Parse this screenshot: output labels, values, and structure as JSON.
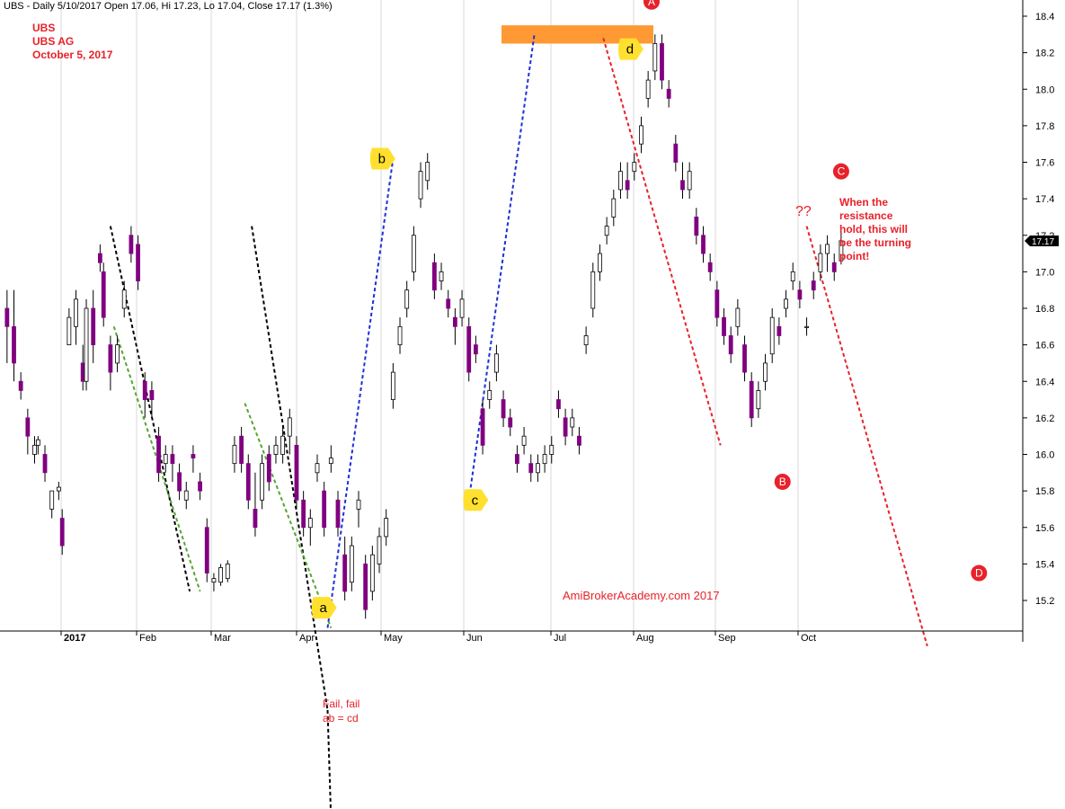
{
  "header": "UBS - Daily 5/10/2017 Open 17.06, Hi 17.23, Lo 17.04, Close 17.17 (1.3%)",
  "title_lines": [
    "UBS",
    "UBS AG",
    "October 5, 2017"
  ],
  "watermark": "AmiBrokerAcademy.com  2017",
  "fail_note": [
    "Fail, fail",
    "ab = cd"
  ],
  "resistance_note": [
    "When the",
    "resistance",
    "hold, this will",
    "be the turning",
    "point!"
  ],
  "question_marks": "??",
  "last_price_label": "17.17",
  "colors": {
    "up": "#ffffff",
    "up_outline": "#000000",
    "down": "#800080",
    "resistance_zone": "#ff9933",
    "wedge_line": "#000000",
    "trend_green": "#55a630",
    "trend_blue": "#1f2fd6",
    "trend_red": "#e8212a",
    "annotation_red": "#e8212a",
    "marker_yellow": "#ffe02e"
  },
  "chart_data": {
    "type": "candlestick",
    "symbol": "UBS",
    "interval": "Daily",
    "ylim": [
      15.0,
      18.5
    ],
    "y_ticks": [
      15.2,
      15.4,
      15.6,
      15.8,
      16.0,
      16.2,
      16.4,
      16.6,
      16.8,
      17.0,
      17.2,
      17.4,
      17.6,
      17.8,
      18.0,
      18.2,
      18.4
    ],
    "x_ticks": [
      "2017",
      "Feb",
      "Mar",
      "Apr",
      "May",
      "Jun",
      "Jul",
      "Aug",
      "Sep",
      "Oct"
    ],
    "grid": "vertical",
    "ohlc": [
      [
        1,
        16.8,
        16.9,
        16.5,
        16.7
      ],
      [
        3,
        16.7,
        16.9,
        16.4,
        16.5
      ],
      [
        5,
        16.4,
        16.45,
        16.3,
        16.35
      ],
      [
        7,
        16.2,
        16.25,
        16.0,
        16.1
      ],
      [
        9,
        16.0,
        16.1,
        15.95,
        16.05
      ],
      [
        10,
        16.05,
        16.1,
        16.0,
        16.08
      ],
      [
        12,
        16.0,
        16.05,
        15.85,
        15.9
      ],
      [
        14,
        15.7,
        15.8,
        15.65,
        15.8
      ],
      [
        16,
        15.8,
        15.85,
        15.75,
        15.82
      ],
      [
        17,
        15.65,
        15.7,
        15.45,
        15.5
      ],
      [
        19,
        16.6,
        16.8,
        16.6,
        16.75
      ],
      [
        21,
        16.7,
        16.9,
        16.6,
        16.85
      ],
      [
        23,
        16.5,
        16.6,
        16.35,
        16.4
      ],
      [
        24,
        16.4,
        16.85,
        16.35,
        16.8
      ],
      [
        26,
        16.8,
        16.9,
        16.5,
        16.6
      ],
      [
        28,
        17.1,
        17.15,
        17.0,
        17.05
      ],
      [
        29,
        17.0,
        17.05,
        16.7,
        16.75
      ],
      [
        31,
        16.6,
        16.65,
        16.35,
        16.45
      ],
      [
        33,
        16.5,
        16.65,
        16.45,
        16.6
      ],
      [
        35,
        16.8,
        16.95,
        16.75,
        16.9
      ],
      [
        37,
        17.2,
        17.25,
        17.05,
        17.1
      ],
      [
        39,
        17.15,
        17.2,
        16.9,
        16.95
      ],
      [
        41,
        16.4,
        16.45,
        16.2,
        16.3
      ],
      [
        43,
        16.35,
        16.4,
        16.2,
        16.3
      ],
      [
        45,
        16.1,
        16.15,
        15.85,
        15.9
      ],
      [
        47,
        15.95,
        16.05,
        15.9,
        16.0
      ],
      [
        49,
        16.0,
        16.05,
        15.85,
        15.95
      ],
      [
        51,
        15.9,
        15.95,
        15.75,
        15.8
      ],
      [
        53,
        15.75,
        15.85,
        15.7,
        15.8
      ],
      [
        55,
        16.0,
        16.05,
        15.9,
        15.98
      ],
      [
        57,
        15.85,
        15.9,
        15.75,
        15.8
      ],
      [
        59,
        15.6,
        15.65,
        15.3,
        15.35
      ],
      [
        61,
        15.3,
        15.35,
        15.25,
        15.32
      ],
      [
        63,
        15.3,
        15.4,
        15.28,
        15.38
      ],
      [
        65,
        15.32,
        15.42,
        15.3,
        15.4
      ],
      [
        67,
        15.95,
        16.1,
        15.9,
        16.05
      ],
      [
        69,
        16.1,
        16.15,
        15.9,
        15.95
      ],
      [
        71,
        15.95,
        16.0,
        15.7,
        15.75
      ],
      [
        73,
        15.7,
        15.9,
        15.55,
        15.6
      ],
      [
        75,
        15.75,
        16.0,
        15.7,
        15.95
      ],
      [
        77,
        16.0,
        16.05,
        15.8,
        15.85
      ],
      [
        79,
        16.0,
        16.1,
        15.95,
        16.05
      ],
      [
        81,
        16.0,
        16.15,
        15.95,
        16.1
      ],
      [
        83,
        16.1,
        16.25,
        16.0,
        16.2
      ],
      [
        85,
        16.05,
        16.1,
        15.7,
        15.75
      ],
      [
        87,
        15.75,
        15.8,
        15.55,
        15.6
      ],
      [
        89,
        15.6,
        15.7,
        15.5,
        15.65
      ],
      [
        91,
        15.9,
        16.0,
        15.85,
        15.95
      ],
      [
        93,
        15.8,
        15.85,
        15.55,
        15.6
      ],
      [
        95,
        15.95,
        16.05,
        15.9,
        15.98
      ],
      [
        97,
        15.75,
        15.8,
        15.55,
        15.6
      ],
      [
        99,
        15.45,
        15.55,
        15.2,
        15.25
      ],
      [
        101,
        15.3,
        15.55,
        15.25,
        15.5
      ],
      [
        103,
        15.7,
        15.8,
        15.6,
        15.75
      ],
      [
        105,
        15.4,
        15.45,
        15.1,
        15.15
      ],
      [
        107,
        15.25,
        15.5,
        15.2,
        15.45
      ],
      [
        109,
        15.4,
        15.6,
        15.35,
        15.55
      ],
      [
        111,
        15.55,
        15.7,
        15.5,
        15.65
      ],
      [
        113,
        16.3,
        16.5,
        16.25,
        16.45
      ],
      [
        115,
        16.6,
        16.75,
        16.55,
        16.7
      ],
      [
        117,
        16.8,
        16.95,
        16.75,
        16.9
      ],
      [
        119,
        17.0,
        17.25,
        16.95,
        17.2
      ],
      [
        121,
        17.4,
        17.6,
        17.35,
        17.55
      ],
      [
        123,
        17.5,
        17.65,
        17.45,
        17.6
      ],
      [
        125,
        17.05,
        17.1,
        16.85,
        16.9
      ],
      [
        127,
        16.95,
        17.05,
        16.9,
        17.0
      ],
      [
        129,
        16.85,
        16.9,
        16.75,
        16.8
      ],
      [
        131,
        16.75,
        16.8,
        16.6,
        16.7
      ],
      [
        133,
        16.75,
        16.9,
        16.7,
        16.85
      ],
      [
        135,
        16.7,
        16.75,
        16.4,
        16.45
      ],
      [
        137,
        16.6,
        16.65,
        16.5,
        16.55
      ],
      [
        139,
        16.25,
        16.3,
        16.0,
        16.05
      ],
      [
        141,
        16.3,
        16.4,
        16.25,
        16.35
      ],
      [
        143,
        16.45,
        16.6,
        16.4,
        16.55
      ],
      [
        145,
        16.3,
        16.35,
        16.15,
        16.2
      ],
      [
        147,
        16.2,
        16.25,
        16.1,
        16.15
      ],
      [
        149,
        16.0,
        16.05,
        15.9,
        15.95
      ],
      [
        151,
        16.05,
        16.15,
        16.0,
        16.1
      ],
      [
        153,
        15.95,
        16.0,
        15.85,
        15.9
      ],
      [
        155,
        15.9,
        16.0,
        15.85,
        15.95
      ],
      [
        157,
        15.95,
        16.05,
        15.9,
        16.0
      ],
      [
        159,
        16.0,
        16.1,
        15.95,
        16.05
      ],
      [
        161,
        16.3,
        16.35,
        16.2,
        16.25
      ],
      [
        163,
        16.2,
        16.25,
        16.05,
        16.1
      ],
      [
        165,
        16.15,
        16.25,
        16.1,
        16.2
      ],
      [
        167,
        16.1,
        16.15,
        16.0,
        16.05
      ],
      [
        169,
        16.6,
        16.7,
        16.55,
        16.65
      ],
      [
        171,
        16.8,
        17.05,
        16.75,
        17.0
      ],
      [
        173,
        17.0,
        17.15,
        16.95,
        17.1
      ],
      [
        175,
        17.2,
        17.3,
        17.15,
        17.25
      ],
      [
        177,
        17.3,
        17.45,
        17.25,
        17.4
      ],
      [
        179,
        17.45,
        17.6,
        17.4,
        17.55
      ],
      [
        181,
        17.5,
        17.6,
        17.4,
        17.45
      ],
      [
        183,
        17.55,
        17.65,
        17.5,
        17.6
      ],
      [
        185,
        17.7,
        17.85,
        17.65,
        17.8
      ],
      [
        187,
        17.95,
        18.1,
        17.9,
        18.05
      ],
      [
        189,
        18.1,
        18.3,
        18.05,
        18.25
      ],
      [
        191,
        18.25,
        18.3,
        18.0,
        18.05
      ],
      [
        193,
        18.0,
        18.05,
        17.9,
        17.95
      ],
      [
        195,
        17.7,
        17.75,
        17.55,
        17.6
      ],
      [
        197,
        17.5,
        17.6,
        17.4,
        17.45
      ],
      [
        199,
        17.45,
        17.6,
        17.4,
        17.55
      ],
      [
        201,
        17.3,
        17.35,
        17.15,
        17.2
      ],
      [
        203,
        17.2,
        17.25,
        17.05,
        17.1
      ],
      [
        205,
        17.05,
        17.1,
        16.95,
        17.0
      ],
      [
        207,
        16.9,
        16.95,
        16.7,
        16.75
      ],
      [
        209,
        16.75,
        16.8,
        16.6,
        16.65
      ],
      [
        211,
        16.65,
        16.7,
        16.5,
        16.55
      ],
      [
        213,
        16.7,
        16.85,
        16.65,
        16.8
      ],
      [
        215,
        16.6,
        16.65,
        16.4,
        16.45
      ],
      [
        217,
        16.4,
        16.45,
        16.15,
        16.2
      ],
      [
        219,
        16.25,
        16.4,
        16.2,
        16.35
      ],
      [
        221,
        16.4,
        16.55,
        16.35,
        16.5
      ],
      [
        223,
        16.55,
        16.8,
        16.5,
        16.75
      ],
      [
        225,
        16.7,
        16.75,
        16.6,
        16.65
      ],
      [
        227,
        16.8,
        16.9,
        16.75,
        16.85
      ],
      [
        229,
        16.95,
        17.05,
        16.9,
        17.0
      ],
      [
        231,
        16.9,
        16.95,
        16.8,
        16.85
      ],
      [
        233,
        16.7,
        16.75,
        16.65,
        16.7
      ],
      [
        235,
        16.95,
        17.0,
        16.85,
        16.9
      ],
      [
        237,
        17.0,
        17.15,
        16.95,
        17.1
      ],
      [
        239,
        17.1,
        17.2,
        17.0,
        17.15
      ],
      [
        241,
        17.05,
        17.1,
        16.95,
        17.0
      ],
      [
        243,
        17.06,
        17.23,
        17.04,
        17.17
      ]
    ],
    "annotations": [
      {
        "label": "A",
        "date_index": 188,
        "price": 18.48
      },
      {
        "label": "B",
        "date_index": 226,
        "price": 15.85
      },
      {
        "label": "C",
        "date_index": 243,
        "price": 17.55
      },
      {
        "label": "D",
        "date_index": 283,
        "price": 15.35
      },
      {
        "label": "a",
        "date_index": 93,
        "price": 15.16
      },
      {
        "label": "b",
        "date_index": 110,
        "price": 17.62
      },
      {
        "label": "c",
        "date_index": 137,
        "price": 15.75
      },
      {
        "label": "d",
        "date_index": 182,
        "price": 18.22
      }
    ]
  }
}
